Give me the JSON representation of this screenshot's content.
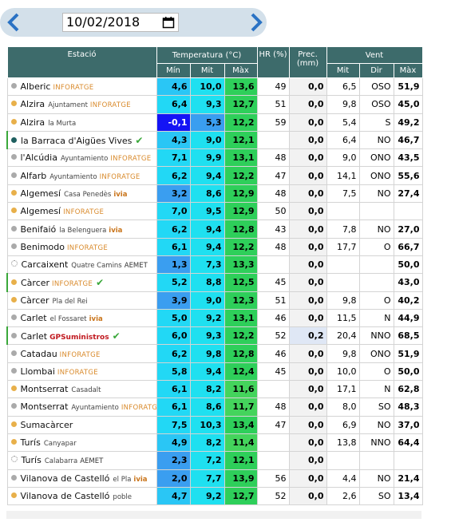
{
  "header": {
    "date": "10/02/2018"
  },
  "table": {
    "columns": {
      "station": "Estació",
      "temperature": "Temperatura (°C)",
      "hr": "HR (%)",
      "prec": "Prec. (mm)",
      "wind": "Vent",
      "min": "Mín",
      "mit": "Mit",
      "max": "Màx",
      "wind_mit": "Mit",
      "wind_dir": "Dir",
      "wind_max": "Màx"
    },
    "rows": [
      {
        "marker": "gray",
        "station": "Alberic",
        "brand": "INFORATGE",
        "min": "4,6",
        "mit": "10,0",
        "max": "13,6",
        "hr": "49",
        "prec": "0,0",
        "wind_mit": "6,5",
        "dir": "OSO",
        "wind_max": "51,9"
      },
      {
        "marker": "orange",
        "station": "Alzira",
        "detail": "Ajuntament",
        "brand": "INFORATGE",
        "min": "6,4",
        "mit": "9,3",
        "max": "12,7",
        "hr": "51",
        "prec": "0,0",
        "wind_mit": "9,8",
        "dir": "OSO",
        "wind_max": "45,0"
      },
      {
        "marker": "orange",
        "station": "Alzira",
        "detail": "la Murta",
        "min": "-0,1",
        "mit": "5,3",
        "max": "12,2",
        "hr": "59",
        "prec": "0,0",
        "wind_mit": "5,4",
        "dir": "S",
        "wind_max": "49,2"
      },
      {
        "marker": "teal",
        "verified": true,
        "station": "la Barraca d'Aigües Vives",
        "min": "4,3",
        "mit": "9,0",
        "max": "12,1",
        "prec": "0,0",
        "wind_mit": "6,4",
        "dir": "NO",
        "wind_max": "46,7"
      },
      {
        "marker": "gray",
        "station": "l'Alcúdia",
        "detail": "Ayuntamiento",
        "brand": "INFORATGE",
        "min": "7,1",
        "mit": "9,9",
        "max": "13,1",
        "hr": "48",
        "prec": "0,0",
        "wind_mit": "9,0",
        "dir": "ONO",
        "wind_max": "43,5"
      },
      {
        "marker": "gray",
        "station": "Alfarb",
        "detail": "Ayuntamiento",
        "brand": "INFORATGE",
        "min": "6,2",
        "mit": "9,4",
        "max": "12,2",
        "hr": "47",
        "prec": "0,0",
        "wind_mit": "14,1",
        "dir": "ONO",
        "wind_max": "55,6"
      },
      {
        "marker": "orange",
        "station": "Algemesí",
        "detail": "Casa Penedès",
        "brand": "ivia",
        "min": "3,2",
        "mit": "8,6",
        "max": "12,9",
        "hr": "48",
        "prec": "0,0",
        "wind_mit": "7,5",
        "dir": "NO",
        "wind_max": "27,4"
      },
      {
        "marker": "orange",
        "station": "Algemesí",
        "brand": "INFORATGE",
        "min": "7,0",
        "mit": "9,5",
        "max": "12,9",
        "hr": "50",
        "prec": "0,0"
      },
      {
        "marker": "gray",
        "station": "Benifaió",
        "detail": "la Belenguera",
        "brand": "ivia",
        "min": "6,2",
        "mit": "9,4",
        "max": "12,8",
        "hr": "43",
        "prec": "0,0",
        "wind_mit": "7,8",
        "dir": "NO",
        "wind_max": "27,0"
      },
      {
        "marker": "gray",
        "station": "Benimodo",
        "brand": "INFORATGE",
        "min": "6,1",
        "mit": "9,4",
        "max": "12,2",
        "hr": "48",
        "prec": "0,0",
        "wind_mit": "17,7",
        "dir": "O",
        "wind_max": "66,7"
      },
      {
        "marker": "dotted",
        "station": "Carcaixent",
        "detail": "Quatre Camins",
        "brand": "AEMET",
        "min": "1,3",
        "mit": "7,3",
        "max": "13,3",
        "prec": "0,0",
        "wind_max": "50,0"
      },
      {
        "marker": "orange",
        "verified": true,
        "station": "Càrcer",
        "brand": "INFORATGE",
        "min": "5,2",
        "mit": "8,8",
        "max": "12,5",
        "hr": "45",
        "prec": "0,0",
        "wind_max": "43,0"
      },
      {
        "marker": "orange",
        "station": "Càrcer",
        "detail": "Pla del Rei",
        "min": "3,9",
        "mit": "9,0",
        "max": "12,3",
        "hr": "51",
        "prec": "0,0",
        "wind_mit": "9,8",
        "dir": "O",
        "wind_max": "40,2"
      },
      {
        "marker": "gray",
        "station": "Carlet",
        "detail": "el Fossaret",
        "brand": "ivia",
        "min": "5,0",
        "mit": "9,2",
        "max": "13,1",
        "hr": "46",
        "prec": "0,0",
        "wind_mit": "11,5",
        "dir": "N",
        "wind_max": "44,9"
      },
      {
        "marker": "gray",
        "verified": true,
        "station": "Carlet",
        "brand": "GPSuministros",
        "min": "6,0",
        "mit": "9,3",
        "max": "12,2",
        "hr": "52",
        "prec": "0,2",
        "wind_mit": "20,4",
        "dir": "NNO",
        "wind_max": "68,5"
      },
      {
        "marker": "gray",
        "station": "Catadau",
        "brand": "INFORATGE",
        "min": "6,2",
        "mit": "9,8",
        "max": "12,8",
        "hr": "46",
        "prec": "0,0",
        "wind_mit": "9,8",
        "dir": "ONO",
        "wind_max": "51,9"
      },
      {
        "marker": "gray",
        "station": "Llombai",
        "brand": "INFORATGE",
        "min": "5,8",
        "mit": "9,4",
        "max": "12,4",
        "hr": "45",
        "prec": "0,0",
        "wind_mit": "10,0",
        "dir": "O",
        "wind_max": "50,0"
      },
      {
        "marker": "orange",
        "station": "Montserrat",
        "detail": "Casadalt",
        "min": "6,1",
        "mit": "8,2",
        "max": "11,6",
        "prec": "0,0",
        "wind_mit": "17,1",
        "dir": "N",
        "wind_max": "62,8"
      },
      {
        "marker": "gray",
        "station": "Montserrat",
        "detail": "Ayuntamiento",
        "brand": "INFORATGE",
        "min": "6,1",
        "mit": "8,6",
        "max": "11,7",
        "hr": "48",
        "prec": "0,0",
        "wind_mit": "8,0",
        "dir": "SO",
        "wind_max": "48,3"
      },
      {
        "marker": "orange",
        "station": "Sumacàrcer",
        "min": "7,5",
        "mit": "10,3",
        "max": "13,4",
        "hr": "47",
        "prec": "0,0",
        "wind_mit": "6,9",
        "dir": "NO",
        "wind_max": "37,0"
      },
      {
        "marker": "orange",
        "station": "Turís",
        "detail": "Canyapar",
        "min": "4,9",
        "mit": "8,2",
        "max": "11,4",
        "prec": "0,0",
        "wind_mit": "13,8",
        "dir": "NNO",
        "wind_max": "64,4"
      },
      {
        "marker": "dotted",
        "station": "Turís",
        "detail": "Calabarra",
        "brand": "AEMET",
        "min": "2,3",
        "mit": "7,2",
        "max": "12,1",
        "prec": "0,0"
      },
      {
        "marker": "gray",
        "station": "Vilanova de Castelló",
        "detail": "el Pla",
        "brand": "ivia",
        "min": "2,0",
        "mit": "7,7",
        "max": "13,9",
        "hr": "56",
        "prec": "0,0",
        "wind_mit": "4,4",
        "dir": "NO",
        "wind_max": "21,4"
      },
      {
        "marker": "orange",
        "station": "Vilanova de Castelló",
        "detail": "poble",
        "min": "4,7",
        "mit": "9,2",
        "max": "12,7",
        "hr": "52",
        "prec": "0,0",
        "wind_mit": "2,6",
        "dir": "SO",
        "wind_max": "13,4"
      }
    ]
  }
}
